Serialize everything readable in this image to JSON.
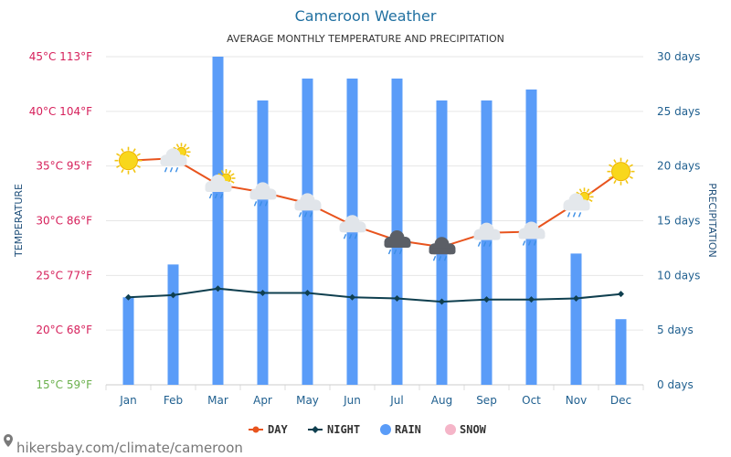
{
  "chart_data": {
    "type": "bar",
    "title": "Cameroon Weather",
    "subtitle": "AVERAGE MONTHLY TEMPERATURE AND PRECIPITATION",
    "ylabel_left": "TEMPERATURE",
    "ylabel_right": "PRECIPITATION",
    "categories": [
      "Jan",
      "Feb",
      "Mar",
      "Apr",
      "May",
      "Jun",
      "Jul",
      "Aug",
      "Sep",
      "Oct",
      "Nov",
      "Dec"
    ],
    "y_left_ticks": [
      {
        "value": 15,
        "label": "15°C 59°F",
        "color": "#6ab04c"
      },
      {
        "value": 20,
        "label": "20°C 68°F",
        "color": "#d6205b"
      },
      {
        "value": 25,
        "label": "25°C 77°F",
        "color": "#d6205b"
      },
      {
        "value": 30,
        "label": "30°C 86°F",
        "color": "#d6205b"
      },
      {
        "value": 35,
        "label": "35°C 95°F",
        "color": "#d6205b"
      },
      {
        "value": 40,
        "label": "40°C 104°F",
        "color": "#d6205b"
      },
      {
        "value": 45,
        "label": "45°C 113°F",
        "color": "#d6205b"
      }
    ],
    "y_right_ticks": [
      {
        "value": 0,
        "label": "0 days"
      },
      {
        "value": 5,
        "label": "5 days"
      },
      {
        "value": 10,
        "label": "10 days"
      },
      {
        "value": 15,
        "label": "15 days"
      },
      {
        "value": 20,
        "label": "20 days"
      },
      {
        "value": 25,
        "label": "25 days"
      },
      {
        "value": 30,
        "label": "30 days"
      }
    ],
    "ylim_left": [
      15,
      45
    ],
    "ylim_right": [
      0,
      30
    ],
    "grid": true,
    "legend_position": "bottom-center",
    "series": [
      {
        "name": "DAY",
        "type": "line",
        "axis": "left",
        "color": "#e8541e",
        "values": [
          35.5,
          35.7,
          33.3,
          32.6,
          31.6,
          29.6,
          28.2,
          27.6,
          28.9,
          29.0,
          31.6,
          34.5
        ]
      },
      {
        "name": "NIGHT",
        "type": "line",
        "axis": "left",
        "color": "#0f3f4f",
        "values": [
          23.0,
          23.2,
          23.8,
          23.4,
          23.4,
          23.0,
          22.9,
          22.6,
          22.8,
          22.8,
          22.9,
          23.3
        ]
      },
      {
        "name": "RAIN",
        "type": "bar",
        "axis": "right",
        "color": "#5a9cf8",
        "values": [
          8,
          11,
          30,
          26,
          28,
          28,
          28,
          26,
          26,
          27,
          12,
          6
        ]
      },
      {
        "name": "SNOW",
        "type": "bar",
        "axis": "right",
        "color": "#f5b5c8",
        "values": [
          0,
          0,
          0,
          0,
          0,
          0,
          0,
          0,
          0,
          0,
          0,
          0
        ]
      }
    ],
    "weather_icons": [
      "sun",
      "sun-cloud-rain",
      "sun-cloud-rain",
      "cloud-rain",
      "cloud-rain",
      "cloud-rain",
      "storm-cloud-rain",
      "storm-cloud-rain",
      "cloud-rain",
      "cloud-rain",
      "sun-cloud-rain",
      "sun"
    ]
  },
  "watermark": "hikersbay.com/climate/cameroon"
}
